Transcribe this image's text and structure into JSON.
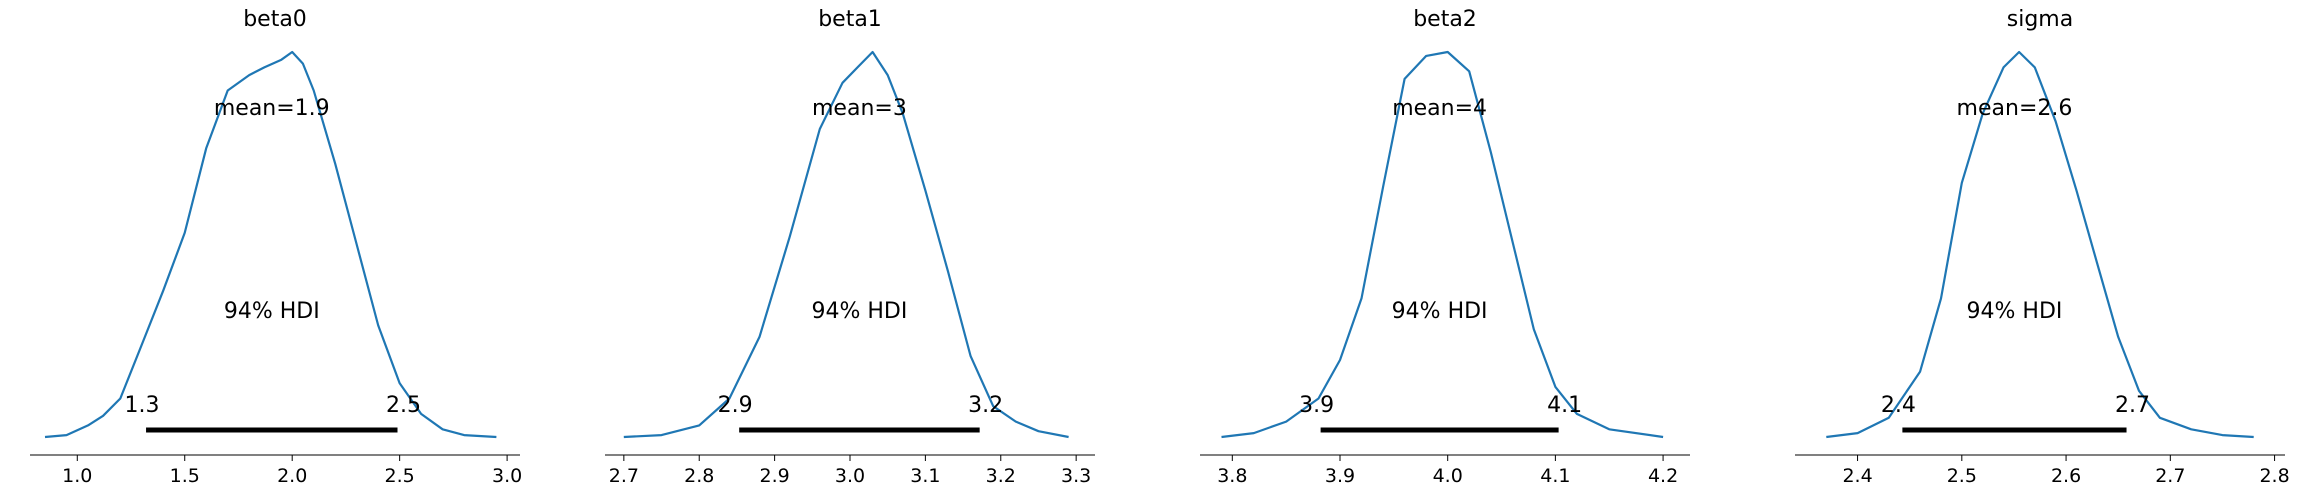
{
  "chart_data": [
    {
      "type": "density",
      "title": "beta0",
      "mean_label": "mean=1.9",
      "hdi_label": "94% HDI",
      "hdi": [
        1.32,
        2.49
      ],
      "hdi_low_label": "1.3",
      "hdi_high_label": "2.5",
      "xlim": [
        0.78,
        3.06
      ],
      "ticks": [
        1.0,
        1.5,
        2.0,
        2.5,
        3.0
      ],
      "tick_labels": [
        "1.0",
        "1.5",
        "2.0",
        "2.5",
        "3.0"
      ],
      "line_color": "#1f77b4",
      "curve": {
        "x": [
          0.85,
          0.95,
          1.05,
          1.12,
          1.2,
          1.3,
          1.4,
          1.5,
          1.6,
          1.7,
          1.8,
          1.87,
          1.95,
          2.0,
          2.05,
          2.1,
          2.2,
          2.3,
          2.4,
          2.5,
          2.6,
          2.7,
          2.8,
          2.95
        ],
        "density": [
          0.0,
          0.005,
          0.03,
          0.055,
          0.1,
          0.24,
          0.38,
          0.53,
          0.75,
          0.9,
          0.94,
          0.96,
          0.98,
          1.0,
          0.97,
          0.9,
          0.71,
          0.5,
          0.29,
          0.14,
          0.06,
          0.02,
          0.005,
          0.0
        ]
      }
    },
    {
      "type": "density",
      "title": "beta1",
      "mean_label": "mean=3",
      "hdi_label": "94% HDI",
      "hdi": [
        2.853,
        3.172
      ],
      "hdi_low_label": "2.9",
      "hdi_high_label": "3.2",
      "xlim": [
        2.675,
        3.325
      ],
      "ticks": [
        2.7,
        2.8,
        2.9,
        3.0,
        3.1,
        3.2,
        3.3
      ],
      "tick_labels": [
        "2.7",
        "2.8",
        "2.9",
        "3.0",
        "3.1",
        "3.2",
        "3.3"
      ],
      "line_color": "#1f77b4",
      "curve": {
        "x": [
          2.7,
          2.75,
          2.8,
          2.84,
          2.88,
          2.92,
          2.96,
          2.99,
          3.01,
          3.03,
          3.05,
          3.07,
          3.1,
          3.13,
          3.16,
          3.19,
          3.22,
          3.25,
          3.29
        ],
        "density": [
          0.0,
          0.005,
          0.03,
          0.1,
          0.26,
          0.52,
          0.8,
          0.92,
          0.96,
          1.0,
          0.94,
          0.84,
          0.64,
          0.43,
          0.21,
          0.08,
          0.04,
          0.015,
          0.0
        ]
      }
    },
    {
      "type": "density",
      "title": "beta2",
      "mean_label": "mean=4",
      "hdi_label": "94% HDI",
      "hdi": [
        3.882,
        4.103
      ],
      "hdi_low_label": "3.9",
      "hdi_high_label": "4.1",
      "xlim": [
        3.77,
        4.225
      ],
      "ticks": [
        3.8,
        3.9,
        4.0,
        4.1,
        4.2
      ],
      "tick_labels": [
        "3.8",
        "3.9",
        "4.0",
        "4.1",
        "4.2"
      ],
      "line_color": "#1f77b4",
      "curve": {
        "x": [
          3.79,
          3.82,
          3.85,
          3.88,
          3.9,
          3.92,
          3.94,
          3.96,
          3.98,
          4.0,
          4.02,
          4.04,
          4.06,
          4.08,
          4.1,
          4.12,
          4.15,
          4.2
        ],
        "density": [
          0.0,
          0.01,
          0.04,
          0.1,
          0.2,
          0.36,
          0.65,
          0.93,
          0.99,
          1.0,
          0.95,
          0.74,
          0.51,
          0.28,
          0.13,
          0.06,
          0.02,
          0.0
        ]
      }
    },
    {
      "type": "density",
      "title": "sigma",
      "mean_label": "mean=2.6",
      "hdi_label": "94% HDI",
      "hdi": [
        2.443,
        2.658
      ],
      "hdi_low_label": "2.4",
      "hdi_high_label": "2.7",
      "xlim": [
        2.34,
        2.81
      ],
      "ticks": [
        2.4,
        2.5,
        2.6,
        2.7,
        2.8
      ],
      "tick_labels": [
        "2.4",
        "2.5",
        "2.6",
        "2.7",
        "2.8"
      ],
      "line_color": "#1f77b4",
      "curve": {
        "x": [
          2.37,
          2.4,
          2.43,
          2.46,
          2.48,
          2.5,
          2.52,
          2.54,
          2.555,
          2.57,
          2.59,
          2.61,
          2.63,
          2.65,
          2.67,
          2.69,
          2.72,
          2.75,
          2.78
        ],
        "density": [
          0.0,
          0.01,
          0.05,
          0.17,
          0.36,
          0.66,
          0.84,
          0.96,
          1.0,
          0.96,
          0.82,
          0.64,
          0.45,
          0.26,
          0.12,
          0.05,
          0.02,
          0.005,
          0.0
        ]
      }
    }
  ]
}
